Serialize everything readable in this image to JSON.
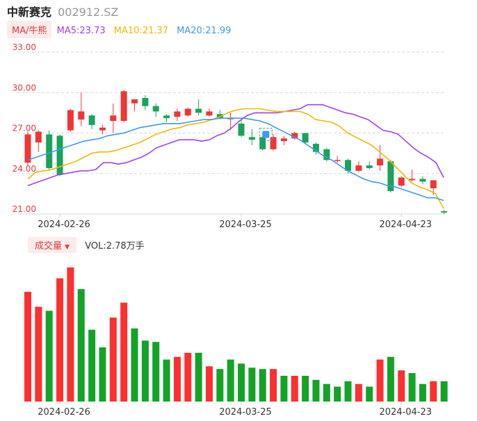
{
  "header": {
    "name": "中新赛克",
    "code": "002912.SZ"
  },
  "ma_legend": {
    "toggle_label": "MA/牛熊",
    "items": [
      {
        "label": "MA5:23.73",
        "color": "#a040f0"
      },
      {
        "label": "MA10:21.37",
        "color": "#f5b800"
      },
      {
        "label": "MA20:21.99",
        "color": "#3d9be9"
      }
    ]
  },
  "volume_legend": {
    "toggle_label": "成交量",
    "text": "VOL:2.78万手"
  },
  "colors": {
    "up": "#f03535",
    "down": "#1aa35a",
    "vol_up": "#fc3030",
    "vol_down": "#13a327",
    "grid": "#d9d9d9",
    "axis_label": "#e4393c"
  },
  "chart_data": [
    {
      "type": "candlestick",
      "y_ticks": [
        "33.00",
        "30.00",
        "27.00",
        "24.00",
        "21.00"
      ],
      "ylim": [
        21.0,
        33.0
      ],
      "x_labels": [
        {
          "label": "2024-02-26",
          "index": 3
        },
        {
          "label": "2024-03-25",
          "index": 20
        },
        {
          "label": "2024-04-23",
          "index": 35
        }
      ],
      "candles": [
        {
          "o": 24.8,
          "h": 27.1,
          "l": 24.6,
          "c": 26.9
        },
        {
          "o": 26.3,
          "h": 27.2,
          "l": 25.6,
          "c": 27.1
        },
        {
          "o": 26.9,
          "h": 27.2,
          "l": 24.2,
          "c": 24.4
        },
        {
          "o": 26.8,
          "h": 26.9,
          "l": 23.8,
          "c": 23.9
        },
        {
          "o": 27.2,
          "h": 28.8,
          "l": 27.1,
          "c": 28.7
        },
        {
          "o": 28.0,
          "h": 30.0,
          "l": 27.5,
          "c": 28.6
        },
        {
          "o": 28.3,
          "h": 28.4,
          "l": 27.3,
          "c": 27.6
        },
        {
          "o": 27.2,
          "h": 27.6,
          "l": 26.9,
          "c": 27.4
        },
        {
          "o": 27.9,
          "h": 29.2,
          "l": 27.0,
          "c": 28.3
        },
        {
          "o": 27.9,
          "h": 30.2,
          "l": 27.8,
          "c": 30.1
        },
        {
          "o": 29.2,
          "h": 29.5,
          "l": 28.6,
          "c": 29.5
        },
        {
          "o": 29.6,
          "h": 29.8,
          "l": 28.7,
          "c": 29.0
        },
        {
          "o": 29.0,
          "h": 29.2,
          "l": 28.2,
          "c": 28.6
        },
        {
          "o": 28.3,
          "h": 28.4,
          "l": 27.8,
          "c": 28.1
        },
        {
          "o": 28.2,
          "h": 28.8,
          "l": 27.9,
          "c": 28.6
        },
        {
          "o": 28.3,
          "h": 28.9,
          "l": 28.2,
          "c": 28.8
        },
        {
          "o": 28.8,
          "h": 29.5,
          "l": 28.3,
          "c": 28.5
        },
        {
          "o": 28.3,
          "h": 28.8,
          "l": 28.2,
          "c": 28.6
        },
        {
          "o": 28.4,
          "h": 28.7,
          "l": 28.0,
          "c": 28.1
        },
        {
          "o": 28.1,
          "h": 28.5,
          "l": 27.2,
          "c": 28.1
        },
        {
          "o": 27.7,
          "h": 28.0,
          "l": 26.7,
          "c": 26.8
        },
        {
          "o": 26.7,
          "h": 27.3,
          "l": 26.1,
          "c": 26.5
        },
        {
          "o": 26.7,
          "h": 26.8,
          "l": 25.7,
          "c": 25.8
        },
        {
          "o": 25.8,
          "h": 26.9,
          "l": 25.7,
          "c": 26.7
        },
        {
          "o": 26.4,
          "h": 26.8,
          "l": 26.1,
          "c": 26.6
        },
        {
          "o": 26.6,
          "h": 27.1,
          "l": 26.5,
          "c": 27.0
        },
        {
          "o": 27.0,
          "h": 27.0,
          "l": 26.2,
          "c": 26.3
        },
        {
          "o": 26.2,
          "h": 26.3,
          "l": 25.4,
          "c": 25.6
        },
        {
          "o": 25.8,
          "h": 25.9,
          "l": 24.9,
          "c": 25.0
        },
        {
          "o": 25.0,
          "h": 25.3,
          "l": 24.8,
          "c": 25.0
        },
        {
          "o": 25.0,
          "h": 25.1,
          "l": 24.0,
          "c": 24.2
        },
        {
          "o": 24.2,
          "h": 24.9,
          "l": 24.1,
          "c": 24.6
        },
        {
          "o": 24.6,
          "h": 24.9,
          "l": 24.3,
          "c": 24.4
        },
        {
          "o": 24.6,
          "h": 26.1,
          "l": 24.2,
          "c": 25.1
        },
        {
          "o": 24.9,
          "h": 25.0,
          "l": 22.6,
          "c": 22.7
        },
        {
          "o": 23.1,
          "h": 23.8,
          "l": 23.0,
          "c": 23.7
        },
        {
          "o": 23.5,
          "h": 24.3,
          "l": 23.4,
          "c": 23.6
        },
        {
          "o": 23.6,
          "h": 23.8,
          "l": 23.2,
          "c": 23.4
        },
        {
          "o": 22.9,
          "h": 23.5,
          "l": 22.4,
          "c": 23.5
        },
        {
          "o": 21.2,
          "h": 21.3,
          "l": 21.0,
          "c": 21.1
        }
      ],
      "series": [
        {
          "name": "MA5",
          "color": "#a040f0",
          "values": [
            23.1,
            23.3,
            23.5,
            23.7,
            23.9,
            24.0,
            24.1,
            24.2,
            24.2,
            24.3,
            24.8,
            24.8,
            24.7,
            24.8,
            25.0,
            25.2,
            25.5,
            25.9,
            26.1,
            26.3,
            26.5,
            26.5,
            26.5,
            26.4,
            26.5,
            26.8,
            27.0,
            27.4,
            27.9,
            28.3,
            28.5,
            28.5,
            28.5,
            28.5,
            28.6,
            28.7,
            28.8,
            29.1,
            29.1,
            29.1,
            28.9,
            28.7,
            28.5,
            28.4,
            28.2,
            28.0,
            27.6,
            27.2,
            27.1,
            26.9,
            26.4,
            25.9,
            25.5,
            25.2,
            24.8,
            23.7
          ]
        },
        {
          "name": "MA10",
          "color": "#f5b800",
          "values": [
            23.6,
            24.1,
            24.2,
            24.3,
            24.5,
            24.7,
            24.9,
            25.2,
            25.5,
            25.6,
            25.6,
            25.7,
            25.9,
            26.1,
            26.3,
            26.6,
            26.9,
            27.1,
            27.3,
            27.4,
            27.6,
            27.7,
            27.8,
            28.0,
            28.2,
            28.5,
            28.7,
            28.8,
            28.8,
            28.8,
            28.7,
            28.6,
            28.6,
            28.6,
            28.6,
            28.4,
            28.0,
            27.9,
            27.8,
            27.5,
            27.0,
            26.7,
            26.4,
            26.1,
            25.6,
            25.1,
            24.5,
            23.9,
            23.3,
            23.0,
            22.8,
            22.5,
            21.4
          ]
        },
        {
          "name": "MA20",
          "color": "#3d9be9",
          "values": [
            25.0,
            25.2,
            25.4,
            25.6,
            25.8,
            26.0,
            26.2,
            26.4,
            26.5,
            26.6,
            26.8,
            26.9,
            27.0,
            27.2,
            27.4,
            27.5,
            27.6,
            27.7,
            27.7,
            27.7,
            27.8,
            27.9,
            28.0,
            28.0,
            28.1,
            28.1,
            28.1,
            28.1,
            28.0,
            27.9,
            27.7,
            27.4,
            27.1,
            26.8,
            26.5,
            26.1,
            25.7,
            25.3,
            25.0,
            24.6,
            24.2,
            23.9,
            23.6,
            23.4,
            23.3,
            23.1,
            23.0,
            22.8,
            22.6,
            22.4,
            22.2,
            22.2,
            22.0
          ]
        }
      ]
    },
    {
      "type": "bar",
      "title": "成交量",
      "ylim": [
        0,
        100
      ],
      "x_labels": [
        {
          "label": "2024-02-26",
          "index": 3
        },
        {
          "label": "2024-03-25",
          "index": 20
        },
        {
          "label": "2024-04-23",
          "index": 35
        }
      ],
      "values": [
        81,
        70,
        67,
        91,
        99,
        83,
        53,
        40,
        62,
        73,
        54,
        45,
        44,
        31,
        33,
        36,
        36,
        26,
        24,
        31,
        28,
        25,
        24,
        24,
        19,
        19,
        19,
        16,
        13,
        11,
        15,
        13,
        11,
        31,
        33,
        23,
        21,
        13,
        15,
        15
      ],
      "up": [
        1,
        1,
        0,
        1,
        1,
        0,
        0,
        0,
        1,
        1,
        0,
        0,
        0,
        0,
        1,
        1,
        0,
        1,
        0,
        0,
        0,
        0,
        0,
        1,
        0,
        1,
        0,
        0,
        0,
        0,
        0,
        1,
        0,
        1,
        0,
        1,
        0,
        0,
        1,
        0
      ]
    }
  ]
}
